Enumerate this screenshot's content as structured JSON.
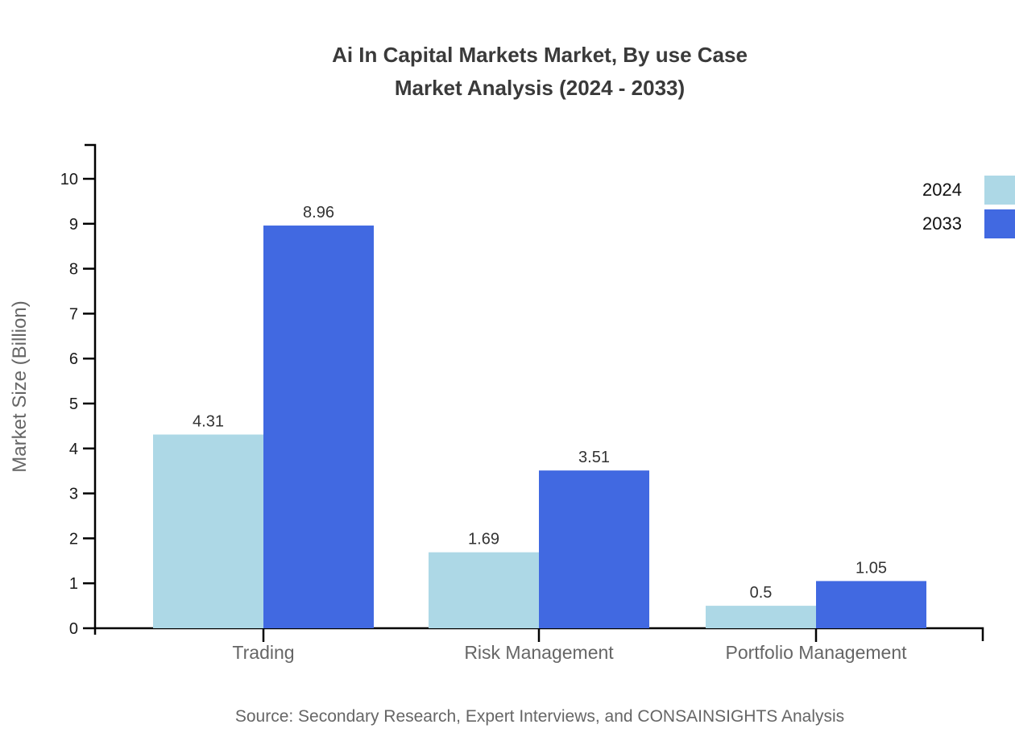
{
  "title": {
    "line1": "Ai In Capital Markets Market, By use Case",
    "line2": "Market Analysis (2024 - 2033)"
  },
  "source": "Source: Secondary Research, Expert Interviews, and CONSAINSIGHTS Analysis",
  "chart_data": {
    "type": "bar",
    "categories": [
      "Trading",
      "Risk Management",
      "Portfolio Management"
    ],
    "series": [
      {
        "name": "2024",
        "color": "#ADD8E6",
        "values": [
          4.31,
          1.69,
          0.5
        ]
      },
      {
        "name": "2033",
        "color": "#4169E1",
        "values": [
          8.96,
          3.51,
          1.05
        ]
      }
    ],
    "title": "Ai In Capital Markets Market, By use Case Market Analysis (2024 - 2033)",
    "xlabel": "",
    "ylabel": "Market Size (Billion)",
    "ylim": [
      0,
      10
    ],
    "yticks": [
      0,
      1,
      2,
      3,
      4,
      5,
      6,
      7,
      8,
      9,
      10
    ],
    "grid": false,
    "legend_position": "top-right",
    "value_labels_shown": true
  }
}
